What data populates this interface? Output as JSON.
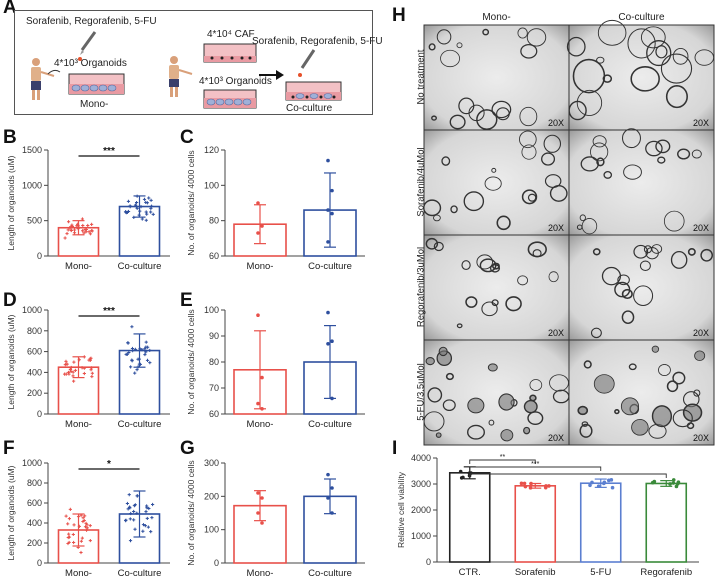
{
  "panel_letters": {
    "A": "A",
    "B": "B",
    "C": "C",
    "D": "D",
    "E": "E",
    "F": "F",
    "G": "G",
    "H": "H",
    "I": "I"
  },
  "schematic": {
    "drugs_left": "Sorafenib, Regorafenib, 5-FU",
    "drugs_right": "Sorafenib, Regorafenib, 5-FU",
    "organoids_mono": "4*10³ Organoids",
    "caf": "4*10⁴ CAF",
    "organoids_co": "4*10³ Organoids",
    "mono_label": "Mono-",
    "co_label": "Co-culture"
  },
  "micrographs": {
    "col_headers": [
      "Mono-",
      "Co-culture"
    ],
    "rows": [
      "No treatment",
      "Sorafenib/4uMol",
      "Regorafenib/3uMol",
      "5-FU/3.5uMol"
    ],
    "magnification": "20X"
  },
  "colors": {
    "mono": "#e8504a",
    "co": "#2e4f9e",
    "sorafenib": "#e8504a",
    "fu": "#5b7fd0",
    "rego": "#3a8a3a",
    "ctr": "#222222"
  },
  "chart_data": [
    {
      "id": "B",
      "type": "bar",
      "categories": [
        "Mono-",
        "Co-culture"
      ],
      "values": [
        400,
        700
      ],
      "errors": [
        100,
        150
      ],
      "ylabel": "Length of organoids (uM)",
      "ylim": [
        0,
        1500
      ],
      "yticks": [
        0,
        500,
        1000,
        1500
      ],
      "significance": "***"
    },
    {
      "id": "C",
      "type": "bar",
      "categories": [
        "Mono-",
        "Co-culture"
      ],
      "values": [
        78,
        86
      ],
      "errors": [
        11,
        21
      ],
      "ylabel": "No. of organoids/ 4000 cells",
      "ylim": [
        60,
        120
      ],
      "yticks": [
        60,
        80,
        100,
        120
      ],
      "points": [
        [
          90,
          77,
          73
        ],
        [
          114,
          97,
          86,
          84,
          68
        ]
      ]
    },
    {
      "id": "D",
      "type": "bar",
      "categories": [
        "Mono-",
        "Co-culture"
      ],
      "values": [
        450,
        610
      ],
      "errors": [
        100,
        160
      ],
      "ylabel": "Length of organoids (uM)",
      "ylim": [
        0,
        1000
      ],
      "yticks": [
        0,
        200,
        400,
        600,
        800,
        1000
      ],
      "significance": "***"
    },
    {
      "id": "E",
      "type": "bar",
      "categories": [
        "Mono-",
        "Co-culture"
      ],
      "values": [
        77,
        80
      ],
      "errors": [
        15,
        14
      ],
      "ylabel": "No. of organoids/ 4000 cells",
      "ylim": [
        60,
        100
      ],
      "yticks": [
        60,
        70,
        80,
        90,
        100
      ],
      "points": [
        [
          98,
          74,
          64,
          62
        ],
        [
          99,
          88,
          87,
          66
        ]
      ]
    },
    {
      "id": "F",
      "type": "bar",
      "categories": [
        "Mono-",
        "Co-culture"
      ],
      "values": [
        330,
        490
      ],
      "errors": [
        160,
        230
      ],
      "ylabel": "Length of organoids (uM)",
      "ylim": [
        0,
        1000
      ],
      "yticks": [
        0,
        200,
        400,
        600,
        800,
        1000
      ],
      "significance": "*"
    },
    {
      "id": "G",
      "type": "bar",
      "categories": [
        "Mono-",
        "Co-culture"
      ],
      "values": [
        172,
        200
      ],
      "errors": [
        45,
        52
      ],
      "ylabel": "No. of organoids/ 4000 cells",
      "ylim": [
        0,
        300
      ],
      "yticks": [
        0,
        100,
        200,
        300
      ],
      "points": [
        [
          210,
          195,
          150,
          120
        ],
        [
          265,
          225,
          195,
          150
        ]
      ]
    },
    {
      "id": "I",
      "type": "bar",
      "categories": [
        "CTR.",
        "Sorafenib",
        "5-FU",
        "Regorafenib"
      ],
      "values": [
        3430,
        2930,
        3030,
        3020
      ],
      "errors": [
        230,
        90,
        160,
        110
      ],
      "ylabel": "Relative cell viability",
      "ylim": [
        0,
        4000
      ],
      "yticks": [
        0,
        1000,
        2000,
        3000,
        4000
      ],
      "significance": [
        {
          "from": 0,
          "to": 1,
          "label": "**"
        },
        {
          "from": 0,
          "to": 2,
          "label": "***"
        },
        {
          "from": 0,
          "to": 3,
          "label": ""
        }
      ]
    }
  ]
}
